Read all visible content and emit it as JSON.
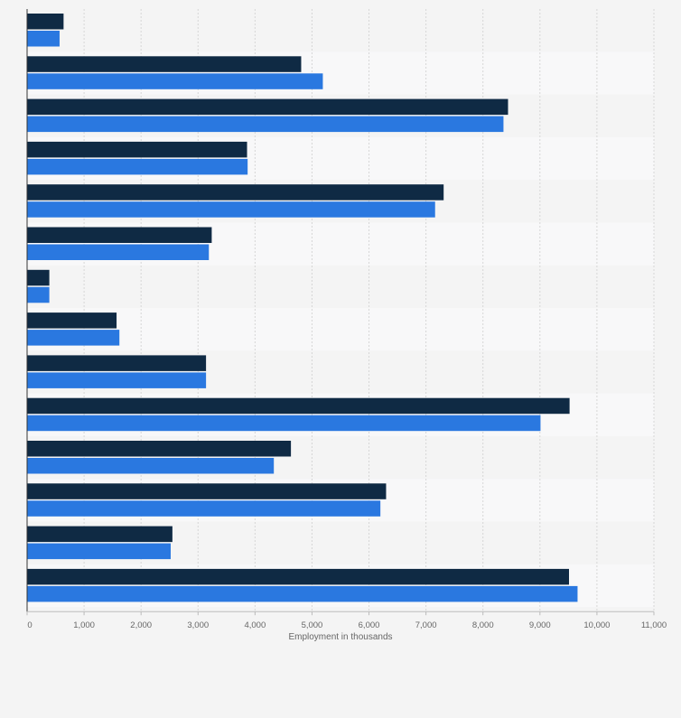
{
  "chart_data": {
    "type": "bar",
    "orientation": "horizontal",
    "title": "",
    "xlabel": "Employment in thousands",
    "ylabel": "",
    "xlim": [
      0,
      11000
    ],
    "xticks": [
      0,
      1000,
      2000,
      3000,
      4000,
      5000,
      6000,
      7000,
      8000,
      9000,
      10000,
      11000
    ],
    "xtick_labels": [
      "0",
      "1,000",
      "2,000",
      "3,000",
      "4,000",
      "5,000",
      "6,000",
      "7,000",
      "8,000",
      "9,000",
      "10,000",
      "11,000"
    ],
    "grid": true,
    "legend": false,
    "categories": [
      "",
      "",
      "",
      "",
      "",
      "",
      "",
      "",
      "",
      "",
      "",
      "",
      "",
      ""
    ],
    "series": [
      {
        "name": "",
        "color": "#0f2a44",
        "values": [
          640,
          4810,
          8440,
          3860,
          7310,
          3240,
          390,
          1570,
          3140,
          9520,
          4630,
          6300,
          2550,
          9510
        ]
      },
      {
        "name": "",
        "color": "#2a78e0",
        "values": [
          570,
          5190,
          8360,
          3870,
          7160,
          3190,
          390,
          1620,
          3140,
          9010,
          4330,
          6200,
          2520,
          9660
        ]
      }
    ],
    "colors": {
      "band_odd": "#f4f4f4",
      "band_even": "#f8f8f9",
      "grid": "#d6d6d6",
      "axis": "#333333",
      "tick_text": "#666666"
    }
  }
}
